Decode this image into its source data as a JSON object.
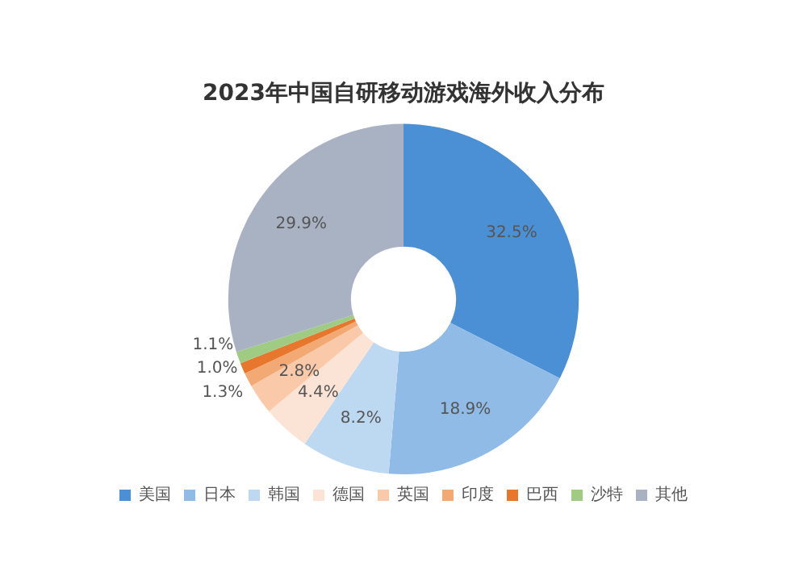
{
  "chart_data": {
    "type": "donut",
    "title": "2023年中国自研移动游戏海外收入分布",
    "categories": [
      "美国",
      "日本",
      "韩国",
      "德国",
      "英国",
      "印度",
      "巴西",
      "沙特",
      "其他"
    ],
    "values": [
      32.5,
      18.9,
      8.2,
      4.4,
      2.8,
      1.3,
      1.0,
      1.1,
      29.9
    ],
    "value_labels": [
      "32.5%",
      "18.9%",
      "8.2%",
      "4.4%",
      "2.8%",
      "1.3%",
      "1.0%",
      "1.1%",
      "29.9%"
    ],
    "colors": [
      "#4b8fd5",
      "#8fbbe6",
      "#bdd8f1",
      "#fbe4d6",
      "#f9c9a9",
      "#f2a974",
      "#e8772e",
      "#9fcb83",
      "#a9b2c3"
    ],
    "legend": "bottom"
  }
}
